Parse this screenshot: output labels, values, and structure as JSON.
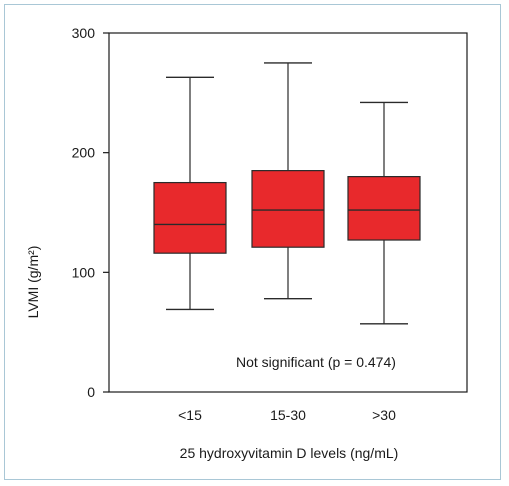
{
  "chart_data": {
    "type": "box",
    "title": "",
    "xlabel": "25 hydroxyvitamin D levels (ng/mL)",
    "ylabel": "LVMI (g/m²)",
    "ylim": [
      0,
      300
    ],
    "yticks": [
      0,
      100,
      200,
      300
    ],
    "categories": [
      "<15",
      "15-30",
      ">30"
    ],
    "boxes": [
      {
        "category": "<15",
        "min": 69,
        "q1": 116,
        "median": 140,
        "q3": 175,
        "max": 263
      },
      {
        "category": "15-30",
        "min": 78,
        "q1": 121,
        "median": 152,
        "q3": 185,
        "max": 275
      },
      {
        "category": ">30",
        "min": 57,
        "q1": 127,
        "median": 152,
        "q3": 180,
        "max": 242
      }
    ],
    "annotation": "Not significant (p = 0.474)",
    "colors": {
      "box_fill": "#e8292c",
      "box_stroke": "#2a2a2a",
      "axis": "#1a1a1a",
      "frame_border": "#a9c7d6"
    },
    "grid": false
  }
}
